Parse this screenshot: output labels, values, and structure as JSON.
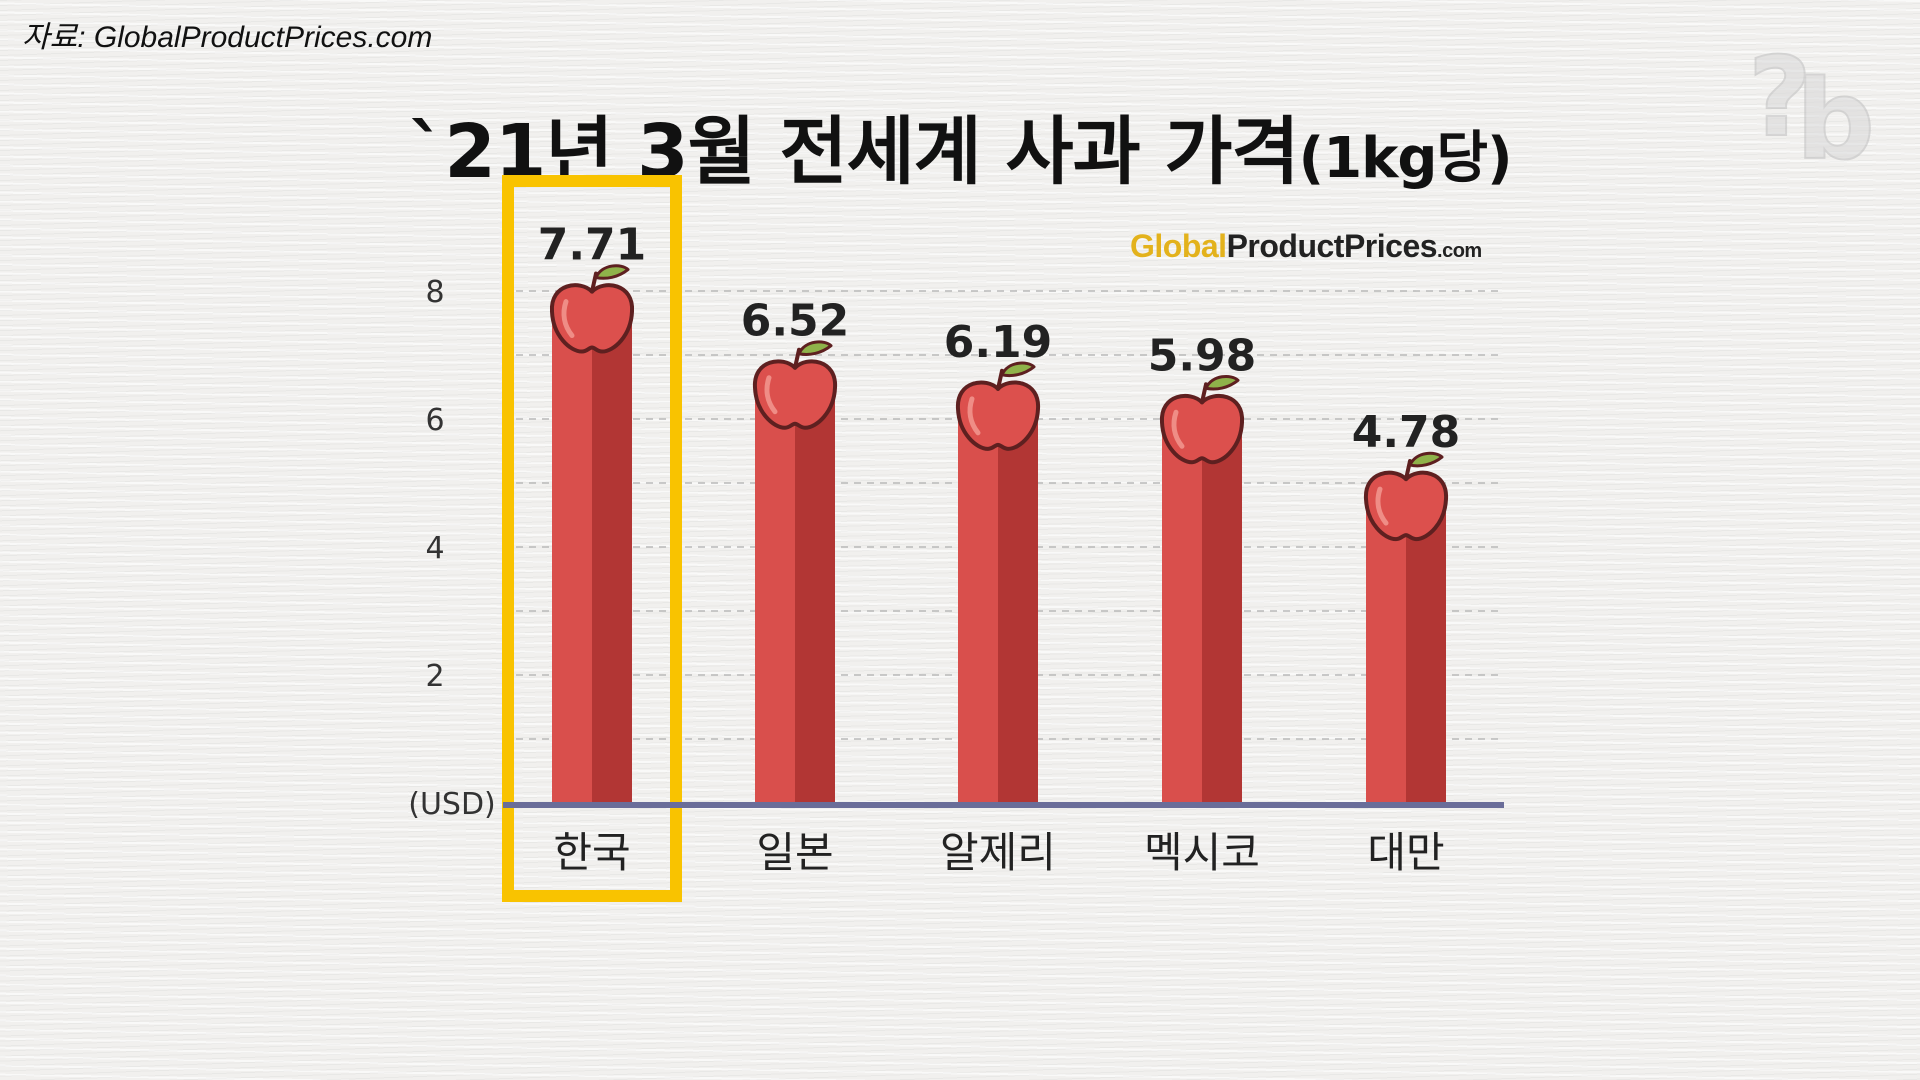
{
  "source_text": "자료: GlobalProductPrices.com",
  "title": "`21년 3월 전세계 사과 가격",
  "title_unit": "(1kg당)",
  "logo": {
    "part1": "Global",
    "part2": "ProductPrices",
    "part3": ".com"
  },
  "chart_data": {
    "type": "bar",
    "title": "`21년 3월 전세계 사과 가격(1kg당)",
    "ylabel": "(USD)",
    "categories": [
      "한국",
      "일본",
      "알제리",
      "멕시코",
      "대만"
    ],
    "values": [
      7.71,
      6.52,
      6.19,
      5.98,
      4.78
    ],
    "value_labels": [
      "7.71",
      "6.52",
      "6.19",
      "5.98",
      "4.78"
    ],
    "yticks": [
      "2",
      "4",
      "6",
      "8"
    ],
    "ylim": [
      0,
      9.4
    ],
    "grid": true,
    "highlight_index": 0,
    "colors": {
      "bar_light": "#d94f4c",
      "bar_dark": "#b23634",
      "axis": "#6a6d99",
      "highlight": "#f9c300",
      "leaf": "#8fb24a"
    }
  }
}
